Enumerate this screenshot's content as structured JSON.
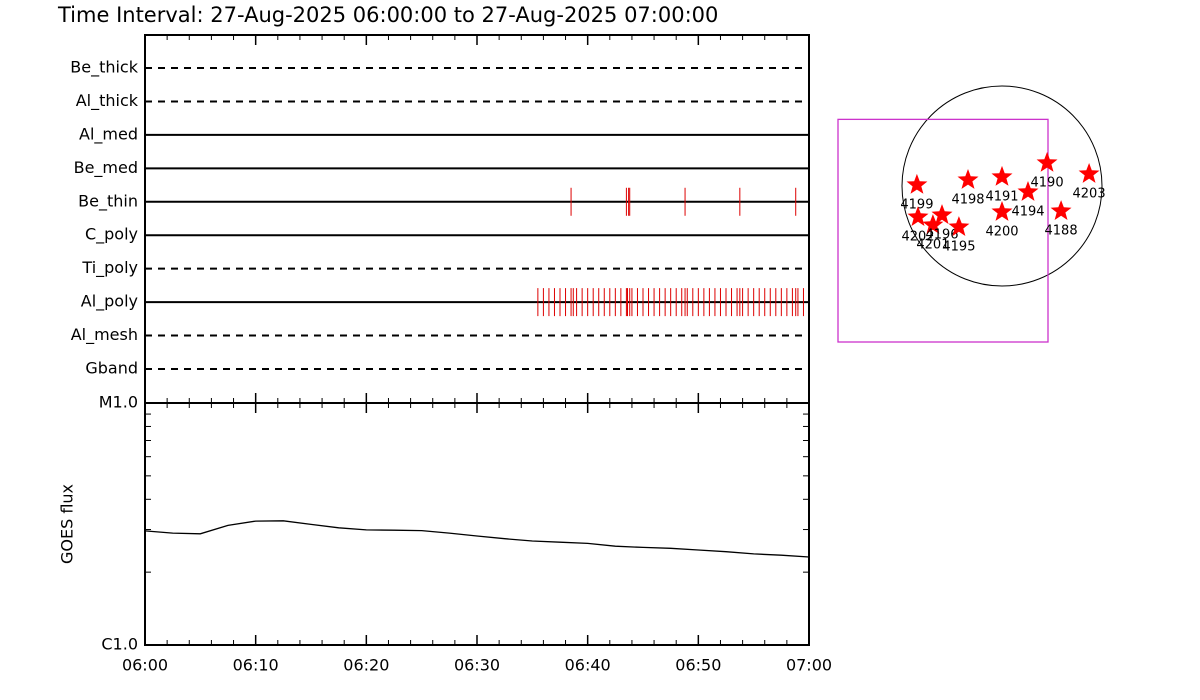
{
  "title": "Time Interval: 27-Aug-2025 06:00:00 to 27-Aug-2025 07:00:00",
  "chart_data": [
    {
      "type": "event",
      "xlim": [
        0,
        60
      ],
      "xticks": [
        {
          "value": 0,
          "label": "06:00"
        },
        {
          "value": 10,
          "label": "06:10"
        },
        {
          "value": 20,
          "label": "06:20"
        },
        {
          "value": 30,
          "label": "06:30"
        },
        {
          "value": 40,
          "label": "06:40"
        },
        {
          "value": 50,
          "label": "06:50"
        },
        {
          "value": 60,
          "label": "07:00"
        }
      ],
      "xminorticks": [
        2,
        4,
        6,
        8,
        12,
        14,
        16,
        18,
        22,
        24,
        26,
        28,
        32,
        34,
        36,
        38,
        42,
        44,
        46,
        48,
        52,
        54,
        56,
        58
      ],
      "color": "#dd0000",
      "filters": [
        {
          "name": "Be_thick",
          "style": "dashed"
        },
        {
          "name": "Al_thick",
          "style": "dashed"
        },
        {
          "name": "Al_med",
          "style": "solid"
        },
        {
          "name": "Be_med",
          "style": "solid"
        },
        {
          "name": "Be_thin",
          "style": "solid",
          "times": [
            38.5,
            43.5,
            43.7,
            43.8,
            48.8,
            53.75,
            58.8
          ]
        },
        {
          "name": "C_poly",
          "style": "solid"
        },
        {
          "name": "Ti_poly",
          "style": "dashed"
        },
        {
          "name": "Al_poly",
          "style": "solid",
          "times": [
            35.5,
            36.0,
            36.5,
            37.0,
            37.5,
            38.0,
            38.5,
            38.7,
            39.0,
            39.5,
            40.0,
            40.5,
            41.0,
            41.5,
            42.0,
            42.5,
            43.0,
            43.5,
            43.6,
            43.8,
            44.0,
            44.5,
            45.0,
            45.5,
            46.0,
            46.5,
            47.0,
            47.5,
            48.0,
            48.5,
            48.8,
            49.0,
            49.5,
            50.0,
            50.5,
            51.0,
            51.5,
            52.0,
            52.5,
            53.0,
            53.5,
            53.75,
            54.0,
            54.5,
            55.0,
            55.5,
            56.0,
            56.5,
            57.0,
            57.5,
            58.0,
            58.5,
            58.8,
            59.0,
            59.5
          ]
        },
        {
          "name": "Al_mesh",
          "style": "dashed"
        },
        {
          "name": "Gband",
          "style": "dashed"
        }
      ]
    },
    {
      "type": "line",
      "ylabel": "GOES flux",
      "yscale": "log",
      "xlim": [
        0,
        60
      ],
      "ylim": [
        1e-06,
        1e-05
      ],
      "yticks": [
        {
          "value": 1e-06,
          "label": "C1.0"
        },
        {
          "value": 1e-05,
          "label": "M1.0"
        }
      ],
      "yminorticks": [
        2e-06,
        3e-06,
        4e-06,
        5e-06,
        6e-06,
        7e-06,
        8e-06,
        9e-06
      ],
      "x": [
        0,
        2.5,
        5,
        7.5,
        10,
        12.5,
        15,
        17.5,
        20,
        22.5,
        25,
        27.5,
        30,
        32.5,
        35,
        37.5,
        40,
        42.5,
        45,
        47.5,
        50,
        52.5,
        55,
        57.5,
        60
      ],
      "values": [
        2.96e-06,
        2.9e-06,
        2.88e-06,
        3.12e-06,
        3.25e-06,
        3.26e-06,
        3.15e-06,
        3.05e-06,
        2.99e-06,
        2.98e-06,
        2.97e-06,
        2.9e-06,
        2.82e-06,
        2.75e-06,
        2.69e-06,
        2.66e-06,
        2.63e-06,
        2.56e-06,
        2.53e-06,
        2.51e-06,
        2.47e-06,
        2.43e-06,
        2.38e-06,
        2.35e-06,
        2.31e-06
      ],
      "color": "#000000"
    },
    {
      "type": "scatter",
      "solar_radius": 950,
      "fov": {
        "xlim": [
          -1558,
          437
        ],
        "ylim": [
          -1482,
          633
        ],
        "color": "#cc33cc"
      },
      "color": "#ff0000",
      "regions": [
        {
          "label": "4199",
          "x": -808,
          "y": 10
        },
        {
          "label": "4198",
          "x": -323,
          "y": 57
        },
        {
          "label": "4191",
          "x": 0,
          "y": 86
        },
        {
          "label": "4190",
          "x": 428,
          "y": 219
        },
        {
          "label": "4203",
          "x": 827,
          "y": 114
        },
        {
          "label": "4194",
          "x": 247,
          "y": -57
        },
        {
          "label": "4200",
          "x": 0,
          "y": -247
        },
        {
          "label": "4188",
          "x": 561,
          "y": -238
        },
        {
          "label": "4202",
          "x": -798,
          "y": -295
        },
        {
          "label": "4201",
          "x": -656,
          "y": -371
        },
        {
          "label": "4196",
          "x": -570,
          "y": -276
        },
        {
          "label": "4195",
          "x": -409,
          "y": -390
        }
      ]
    }
  ]
}
